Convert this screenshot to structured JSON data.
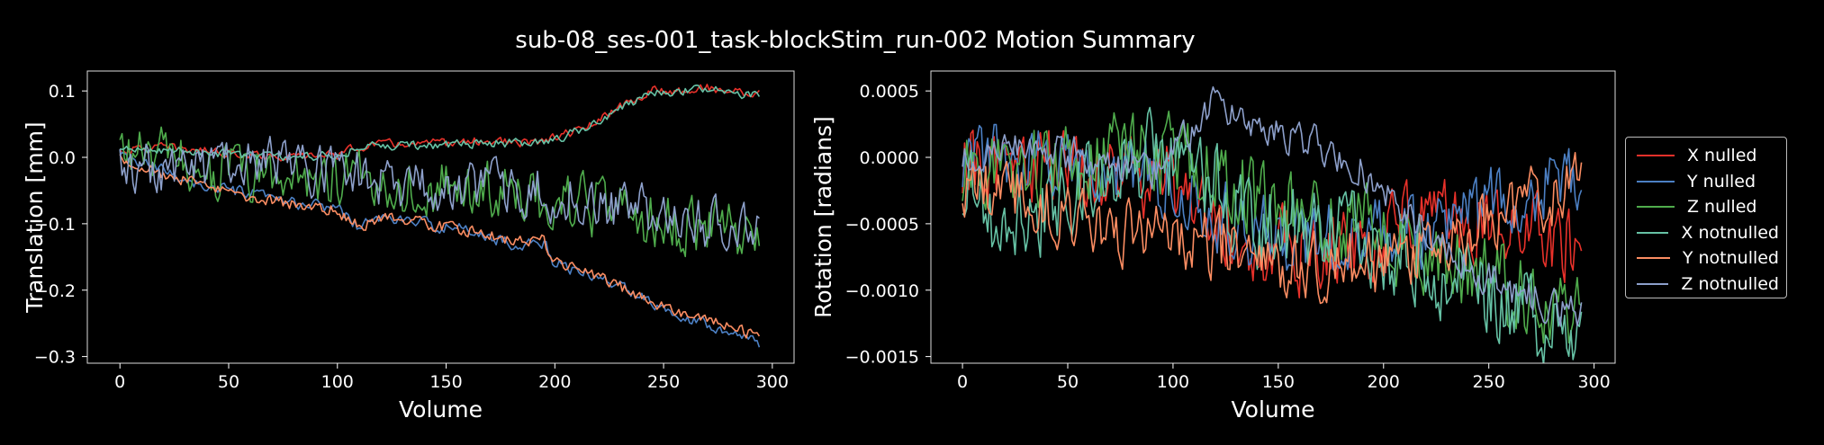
{
  "figure": {
    "title": "sub-08_ses-001_task-blockStim_run-002 Motion Summary"
  },
  "legend": {
    "placement": "right",
    "entries": [
      {
        "label": "X nulled",
        "color": "#e8312a"
      },
      {
        "label": "Y nulled",
        "color": "#4c80c4"
      },
      {
        "label": "Z nulled",
        "color": "#4fac4c"
      },
      {
        "label": "X notnulled",
        "color": "#66c2a5"
      },
      {
        "label": "Y notnulled",
        "color": "#fc8d62"
      },
      {
        "label": "Z notnulled",
        "color": "#8da0cb"
      }
    ]
  },
  "chart_data": [
    {
      "type": "line",
      "xlabel": "Volume",
      "ylabel": "Translation [mm]",
      "xlim": [
        -15,
        310
      ],
      "ylim": [
        -0.31,
        0.13
      ],
      "xticks": [
        0,
        50,
        100,
        150,
        200,
        250,
        300
      ],
      "yticks": [
        {
          "value": 0.1,
          "label": "0.1"
        },
        {
          "value": 0.0,
          "label": "0.0"
        },
        {
          "value": -0.1,
          "label": "−0.1"
        },
        {
          "value": -0.2,
          "label": "−0.2"
        },
        {
          "value": -0.3,
          "label": "−0.3"
        }
      ],
      "grid": false,
      "n_volumes": 295,
      "series": [
        {
          "name": "X nulled",
          "color": "#e8312a",
          "noise": 0.006,
          "points": [
            [
              0,
              0.01
            ],
            [
              20,
              0.015
            ],
            [
              40,
              0.01
            ],
            [
              60,
              0.005
            ],
            [
              80,
              0.0
            ],
            [
              100,
              0.005
            ],
            [
              115,
              0.02
            ],
            [
              140,
              0.02
            ],
            [
              170,
              0.025
            ],
            [
              190,
              0.02
            ],
            [
              200,
              0.03
            ],
            [
              215,
              0.045
            ],
            [
              230,
              0.075
            ],
            [
              245,
              0.1
            ],
            [
              260,
              0.1
            ],
            [
              270,
              0.105
            ],
            [
              280,
              0.1
            ],
            [
              294,
              0.095
            ]
          ]
        },
        {
          "name": "Y nulled",
          "color": "#4c80c4",
          "noise": 0.008,
          "points": [
            [
              0,
              0.0
            ],
            [
              20,
              -0.02
            ],
            [
              40,
              -0.045
            ],
            [
              60,
              -0.055
            ],
            [
              80,
              -0.07
            ],
            [
              100,
              -0.075
            ],
            [
              110,
              -0.105
            ],
            [
              120,
              -0.09
            ],
            [
              140,
              -0.1
            ],
            [
              160,
              -0.11
            ],
            [
              180,
              -0.13
            ],
            [
              195,
              -0.13
            ],
            [
              200,
              -0.16
            ],
            [
              220,
              -0.18
            ],
            [
              240,
              -0.21
            ],
            [
              260,
              -0.24
            ],
            [
              275,
              -0.255
            ],
            [
              294,
              -0.28
            ]
          ]
        },
        {
          "name": "Z nulled",
          "color": "#4fac4c",
          "noise": 0.04,
          "points": [
            [
              0,
              0.01
            ],
            [
              30,
              -0.01
            ],
            [
              60,
              -0.03
            ],
            [
              100,
              -0.03
            ],
            [
              130,
              -0.04
            ],
            [
              160,
              -0.05
            ],
            [
              190,
              -0.06
            ],
            [
              220,
              -0.08
            ],
            [
              250,
              -0.1
            ],
            [
              270,
              -0.11
            ],
            [
              294,
              -0.11
            ]
          ]
        },
        {
          "name": "X notnulled",
          "color": "#66c2a5",
          "noise": 0.006,
          "points": [
            [
              0,
              0.01
            ],
            [
              20,
              0.012
            ],
            [
              40,
              0.008
            ],
            [
              60,
              0.003
            ],
            [
              80,
              0.0
            ],
            [
              100,
              0.005
            ],
            [
              115,
              0.018
            ],
            [
              140,
              0.018
            ],
            [
              170,
              0.022
            ],
            [
              190,
              0.02
            ],
            [
              200,
              0.028
            ],
            [
              215,
              0.043
            ],
            [
              230,
              0.072
            ],
            [
              245,
              0.097
            ],
            [
              260,
              0.1
            ],
            [
              270,
              0.102
            ],
            [
              280,
              0.098
            ],
            [
              294,
              0.092
            ]
          ]
        },
        {
          "name": "Y notnulled",
          "color": "#fc8d62",
          "noise": 0.008,
          "points": [
            [
              0,
              0.0
            ],
            [
              20,
              -0.025
            ],
            [
              40,
              -0.045
            ],
            [
              60,
              -0.06
            ],
            [
              80,
              -0.07
            ],
            [
              100,
              -0.08
            ],
            [
              110,
              -0.105
            ],
            [
              120,
              -0.09
            ],
            [
              140,
              -0.1
            ],
            [
              160,
              -0.11
            ],
            [
              180,
              -0.125
            ],
            [
              195,
              -0.125
            ],
            [
              200,
              -0.16
            ],
            [
              220,
              -0.18
            ],
            [
              240,
              -0.21
            ],
            [
              260,
              -0.24
            ],
            [
              275,
              -0.25
            ],
            [
              294,
              -0.27
            ]
          ]
        },
        {
          "name": "Z notnulled",
          "color": "#8da0cb",
          "noise": 0.035,
          "points": [
            [
              0,
              -0.01
            ],
            [
              30,
              -0.02
            ],
            [
              60,
              -0.01
            ],
            [
              100,
              -0.02
            ],
            [
              130,
              -0.04
            ],
            [
              160,
              -0.04
            ],
            [
              190,
              -0.05
            ],
            [
              220,
              -0.07
            ],
            [
              250,
              -0.09
            ],
            [
              270,
              -0.1
            ],
            [
              294,
              -0.1
            ]
          ]
        }
      ]
    },
    {
      "type": "line",
      "xlabel": "Volume",
      "ylabel": "Rotation [radians]",
      "xlim": [
        -15,
        310
      ],
      "ylim": [
        -0.00155,
        0.00065
      ],
      "xticks": [
        0,
        50,
        100,
        150,
        200,
        250,
        300
      ],
      "yticks": [
        {
          "value": 0.0005,
          "label": "0.0005"
        },
        {
          "value": 0.0,
          "label": "0.0000"
        },
        {
          "value": -0.0005,
          "label": "−0.0005"
        },
        {
          "value": -0.001,
          "label": "−0.0010"
        },
        {
          "value": -0.0015,
          "label": "−0.0015"
        }
      ],
      "grid": false,
      "n_volumes": 295,
      "series": [
        {
          "name": "X nulled",
          "color": "#e8312a",
          "noise": 0.00028,
          "points": [
            [
              0,
              0.0
            ],
            [
              50,
              -0.0001
            ],
            [
              100,
              -0.0002
            ],
            [
              130,
              -0.0006
            ],
            [
              160,
              -0.0007
            ],
            [
              200,
              -0.0006
            ],
            [
              230,
              -0.0003
            ],
            [
              250,
              -0.0005
            ],
            [
              270,
              -0.0006
            ],
            [
              294,
              -0.0006
            ]
          ]
        },
        {
          "name": "Y nulled",
          "color": "#4c80c4",
          "noise": 0.00025,
          "points": [
            [
              0,
              0.0
            ],
            [
              50,
              -0.0001
            ],
            [
              100,
              -0.0002
            ],
            [
              130,
              -0.0005
            ],
            [
              160,
              -0.0006
            ],
            [
              200,
              -0.0006
            ],
            [
              230,
              -0.0005
            ],
            [
              260,
              -0.0003
            ],
            [
              294,
              -0.0002
            ]
          ]
        },
        {
          "name": "Z nulled",
          "color": "#4fac4c",
          "noise": 0.00028,
          "points": [
            [
              0,
              -0.0001
            ],
            [
              50,
              -0.0001
            ],
            [
              80,
              0.0001
            ],
            [
              110,
              0.0
            ],
            [
              140,
              -0.0003
            ],
            [
              180,
              -0.0005
            ],
            [
              220,
              -0.0007
            ],
            [
              250,
              -0.0009
            ],
            [
              270,
              -0.0011
            ],
            [
              294,
              -0.0012
            ]
          ]
        },
        {
          "name": "X notnulled",
          "color": "#66c2a5",
          "noise": 0.0003,
          "points": [
            [
              0,
              -0.0002
            ],
            [
              20,
              -0.0006
            ],
            [
              50,
              -0.0003
            ],
            [
              80,
              0.0
            ],
            [
              110,
              -0.0001
            ],
            [
              140,
              -0.0005
            ],
            [
              180,
              -0.0006
            ],
            [
              220,
              -0.0008
            ],
            [
              250,
              -0.001
            ],
            [
              270,
              -0.0012
            ],
            [
              294,
              -0.0013
            ]
          ]
        },
        {
          "name": "Y notnulled",
          "color": "#fc8d62",
          "noise": 0.00022,
          "points": [
            [
              0,
              -0.0002
            ],
            [
              30,
              -0.0003
            ],
            [
              60,
              -0.0005
            ],
            [
              100,
              -0.0006
            ],
            [
              130,
              -0.0007
            ],
            [
              160,
              -0.0008
            ],
            [
              200,
              -0.0008
            ],
            [
              230,
              -0.0006
            ],
            [
              260,
              -0.0004
            ],
            [
              294,
              -0.0002
            ]
          ]
        },
        {
          "name": "Z notnulled",
          "color": "#8da0cb",
          "noise": 0.00012,
          "points": [
            [
              0,
              0.0
            ],
            [
              30,
              0.0001
            ],
            [
              60,
              0.0
            ],
            [
              90,
              -0.0001
            ],
            [
              110,
              0.0002
            ],
            [
              120,
              0.0004
            ],
            [
              140,
              0.0002
            ],
            [
              170,
              0.0001
            ],
            [
              190,
              -0.0001
            ],
            [
              210,
              -0.0004
            ],
            [
              240,
              -0.0008
            ],
            [
              260,
              -0.001
            ],
            [
              280,
              -0.0011
            ],
            [
              294,
              -0.0012
            ]
          ]
        }
      ]
    }
  ]
}
